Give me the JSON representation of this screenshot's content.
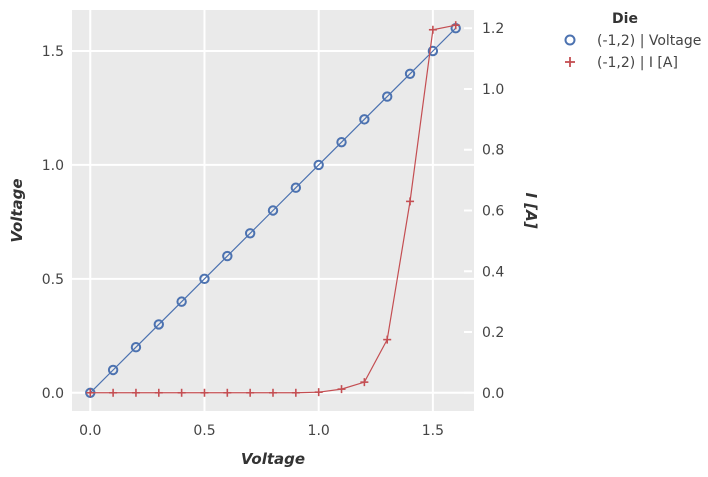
{
  "chart_data": {
    "type": "line",
    "xlabel": "Voltage",
    "ylabel_left": "Voltage",
    "ylabel_right": "I [A]",
    "xlim": [
      -0.08,
      1.68
    ],
    "ylim_left": [
      -0.08,
      1.68
    ],
    "ylim_right": [
      -0.06,
      1.26
    ],
    "x_ticks": [
      0.0,
      0.5,
      1.0,
      1.5
    ],
    "x_tick_labels": [
      "0.0",
      "0.5",
      "1.0",
      "1.5"
    ],
    "y_left_ticks": [
      0.0,
      0.5,
      1.0,
      1.5
    ],
    "y_left_tick_labels": [
      "0.0",
      "0.5",
      "1.0",
      "1.5"
    ],
    "y_right_ticks": [
      0.0,
      0.2,
      0.4,
      0.6,
      0.8,
      1.0,
      1.2
    ],
    "y_right_tick_labels": [
      "0.0",
      "0.2",
      "0.4",
      "0.6",
      "0.8",
      "1.0",
      "1.2"
    ],
    "grid": true,
    "legend_title": "Die",
    "legend_position": "outside top-right",
    "series": [
      {
        "name": "(-1,2) | Voltage",
        "axis": "left",
        "marker": "circle",
        "color": "#4c72b0",
        "x": [
          0.0,
          0.1,
          0.2,
          0.3,
          0.4,
          0.5,
          0.6,
          0.7,
          0.8,
          0.9,
          1.0,
          1.1,
          1.2,
          1.3,
          1.4,
          1.5,
          1.6
        ],
        "y": [
          0.0,
          0.1,
          0.2,
          0.3,
          0.4,
          0.5,
          0.6,
          0.7,
          0.8,
          0.9,
          1.0,
          1.1,
          1.2,
          1.3,
          1.4,
          1.5,
          1.6
        ]
      },
      {
        "name": "(-1,2) | I [A]",
        "axis": "right",
        "marker": "plus",
        "color": "#c44e52",
        "x": [
          0.0,
          0.1,
          0.2,
          0.3,
          0.4,
          0.5,
          0.6,
          0.7,
          0.8,
          0.9,
          1.0,
          1.1,
          1.2,
          1.3,
          1.4,
          1.5,
          1.6
        ],
        "y": [
          0.0,
          0.0,
          0.0,
          0.0,
          0.0,
          0.0,
          0.0,
          0.0,
          0.0,
          0.0,
          0.002,
          0.012,
          0.035,
          0.175,
          0.63,
          1.195,
          1.21
        ]
      }
    ]
  }
}
